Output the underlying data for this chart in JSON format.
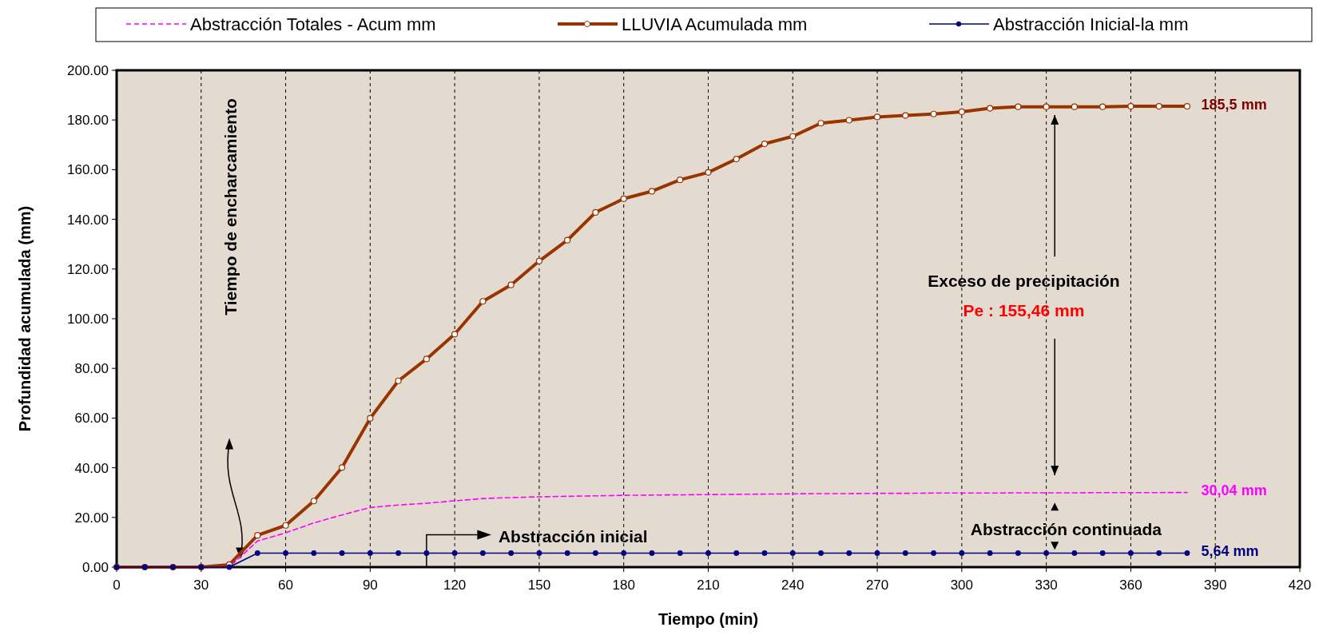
{
  "chart_data": {
    "type": "line",
    "xlabel": "Tiempo (min)",
    "ylabel": "Profundidad acumulada (mm)",
    "x": [
      0,
      10,
      20,
      30,
      40,
      50,
      60,
      70,
      80,
      90,
      100,
      110,
      120,
      130,
      140,
      150,
      160,
      170,
      180,
      190,
      200,
      210,
      220,
      230,
      240,
      250,
      260,
      270,
      280,
      290,
      300,
      310,
      320,
      330,
      340,
      350,
      360,
      370,
      380
    ],
    "series": [
      {
        "name": "Abstracción Totales - Acum mm",
        "color": "#ff00ff",
        "line_style": "dashed",
        "marker": "none",
        "values": [
          null,
          null,
          null,
          0,
          0,
          10.5,
          13.8,
          17.8,
          21,
          24,
          25,
          25.7,
          26.7,
          27.6,
          28,
          28.3,
          28.5,
          28.7,
          28.9,
          29,
          29.1,
          29.2,
          29.3,
          29.4,
          29.5,
          29.6,
          29.6,
          29.7,
          29.7,
          29.8,
          29.8,
          29.8,
          29.9,
          29.9,
          29.9,
          30,
          30,
          30,
          30.04
        ]
      },
      {
        "name": "LLUVIA Acumulada mm",
        "color": "#993300",
        "line_style": "solid",
        "marker": "circle",
        "values": [
          0,
          0,
          0,
          0,
          1,
          12.8,
          16.8,
          26.6,
          40.1,
          59.9,
          75,
          83.8,
          93.8,
          107,
          113.6,
          123.2,
          131.6,
          142.8,
          148.3,
          151.3,
          155.9,
          158.9,
          164.3,
          170.4,
          173.4,
          178.7,
          179.9,
          181.2,
          181.8,
          182.4,
          183.3,
          184.7,
          185.3,
          185.3,
          185.3,
          185.3,
          185.5,
          185.5,
          185.5
        ]
      },
      {
        "name": "Abstracción Inicial-la mm",
        "color": "#000080",
        "line_style": "solid",
        "marker": "circle",
        "values": [
          0,
          0,
          0,
          0,
          0,
          5.64,
          5.64,
          5.64,
          5.64,
          5.64,
          5.64,
          5.64,
          5.64,
          5.64,
          5.64,
          5.64,
          5.64,
          5.64,
          5.64,
          5.64,
          5.64,
          5.64,
          5.64,
          5.64,
          5.64,
          5.64,
          5.64,
          5.64,
          5.64,
          5.64,
          5.64,
          5.64,
          5.64,
          5.64,
          5.64,
          5.64,
          5.64,
          5.64,
          5.64
        ]
      }
    ],
    "xlim": [
      0,
      420
    ],
    "xticks": [
      0,
      30,
      60,
      90,
      120,
      150,
      180,
      210,
      240,
      270,
      300,
      330,
      360,
      390,
      420
    ],
    "ylim": [
      0,
      200
    ],
    "yticks": [
      {
        "value": 0,
        "label": "0.00"
      },
      {
        "value": 20,
        "label": "20.00"
      },
      {
        "value": 40,
        "label": "40.00"
      },
      {
        "value": 60,
        "label": "60.00"
      },
      {
        "value": 80,
        "label": "80.00"
      },
      {
        "value": 100,
        "label": "100.00"
      },
      {
        "value": 120,
        "label": "120.00"
      },
      {
        "value": 140,
        "label": "140.00"
      },
      {
        "value": 160,
        "label": "160.00"
      },
      {
        "value": 180,
        "label": "180.00"
      },
      {
        "value": 200,
        "label": "200.00"
      }
    ],
    "grid": "x",
    "legend": "top",
    "annotations": [
      "185,5 mm",
      "30,04 mm",
      "5,64 mm",
      "Tiempo de encharcamiento",
      "Abstracción inicial",
      "Exceso de precipitación",
      "Pe : 155,46 mm",
      "Abstracción continuada"
    ]
  }
}
